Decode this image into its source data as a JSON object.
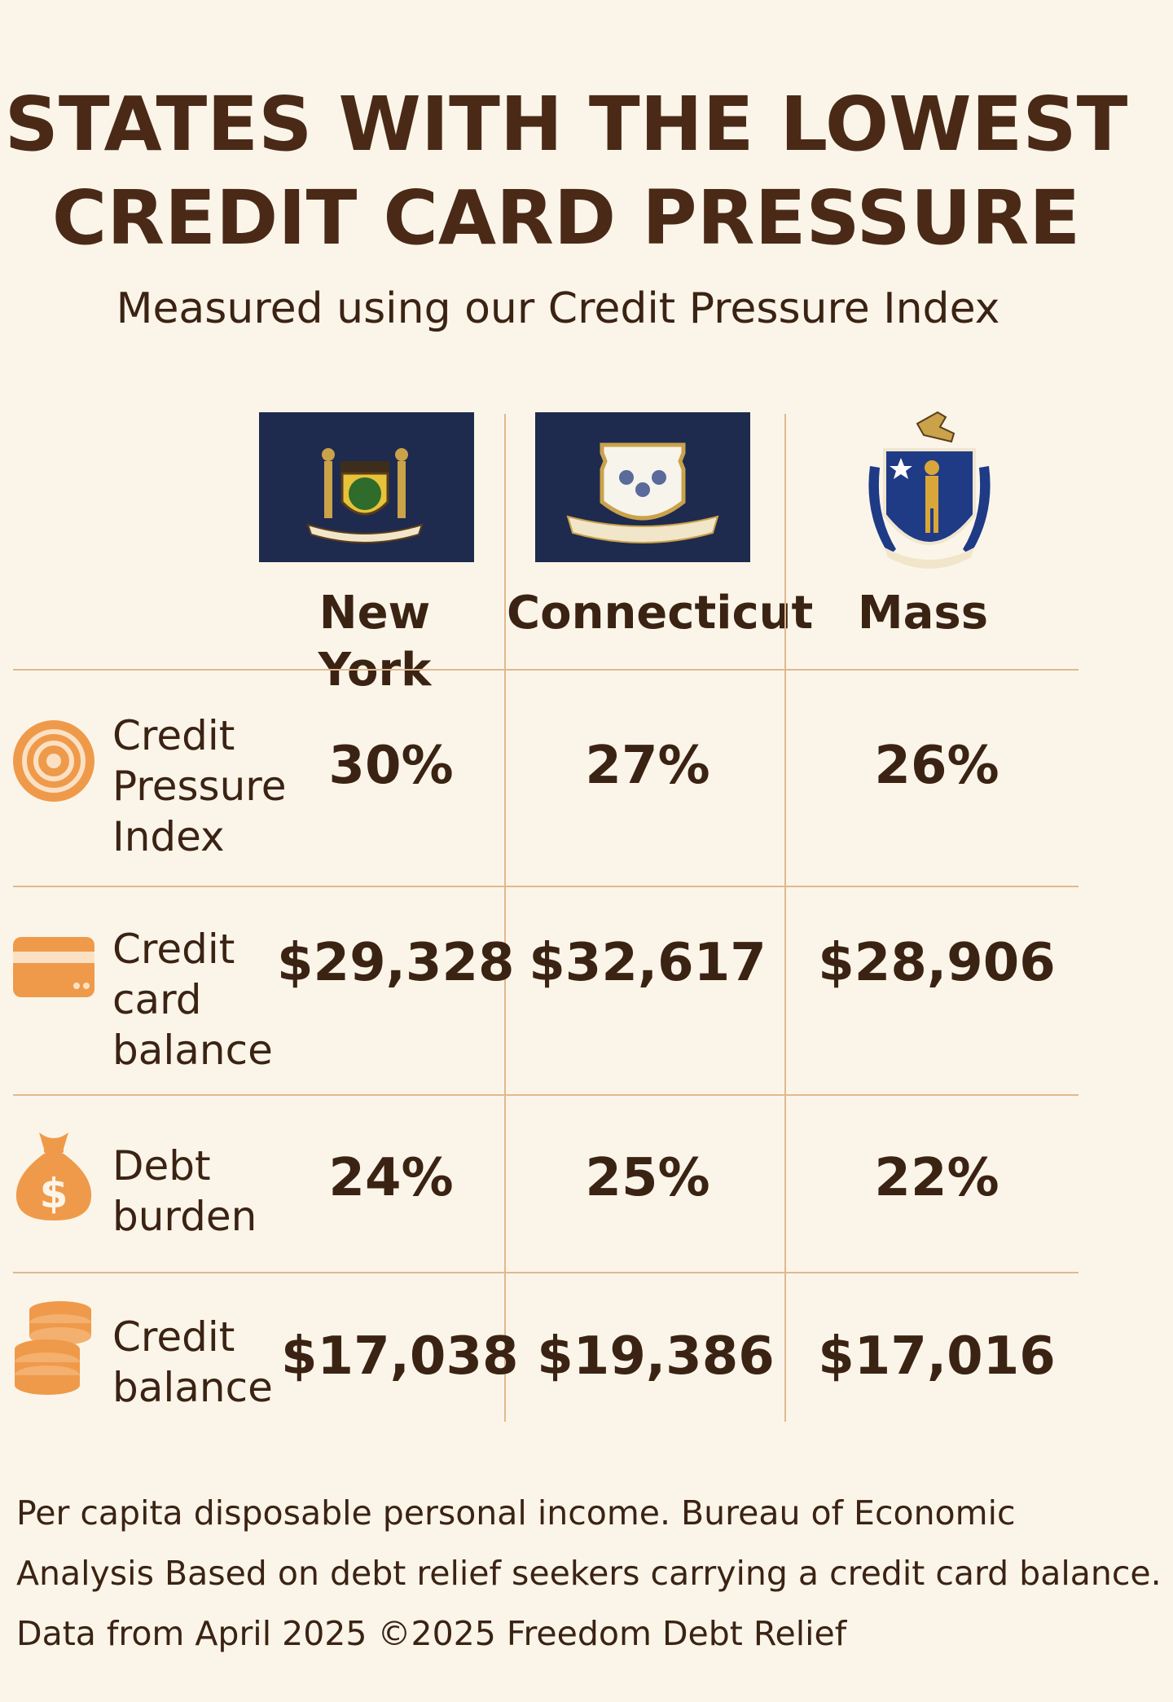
{
  "title_line1": "STATES WITH THE LOWEST",
  "title_line2": "CREDIT CARD PRESSURE",
  "subtitle": "Measured using our Credit Pressure Index",
  "states": [
    {
      "name": "New York",
      "flag_icon": "new-york-flag-icon"
    },
    {
      "name": "Connecticut",
      "flag_icon": "connecticut-flag-icon"
    },
    {
      "name": "Mass",
      "flag_icon": "massachusetts-seal-icon"
    }
  ],
  "rows": [
    {
      "icon": "target-icon",
      "label": [
        "Credit",
        "Pressure",
        "Index"
      ],
      "values": [
        "30%",
        "27%",
        "26%"
      ]
    },
    {
      "icon": "credit-card-icon",
      "label": [
        "Credit",
        "card",
        "balance"
      ],
      "values": [
        "$29,328",
        "$32,617",
        "$28,906"
      ]
    },
    {
      "icon": "money-bag-icon",
      "label": [
        "Debt",
        "burden"
      ],
      "values": [
        "24%",
        "25%",
        "22%"
      ]
    },
    {
      "icon": "coin-stack-icon",
      "label": [
        "Credit",
        "balance"
      ],
      "values": [
        "$17,038",
        "$19,386",
        "$17,016"
      ]
    }
  ],
  "footer": [
    "Per capita disposable personal income. Bureau of Economic",
    "Analysis Based on debt relief seekers carrying a credit card balance.",
    "Data from April 2025 ©2025 Freedom Debt Relief"
  ],
  "colors": {
    "background": "#fbf5e9",
    "title": "#4a2a17",
    "text": "#3b2314",
    "accent_orange": "#ef9a4a",
    "grid_line": "#e0b98e",
    "flag_blue": "#1f2a4f"
  }
}
